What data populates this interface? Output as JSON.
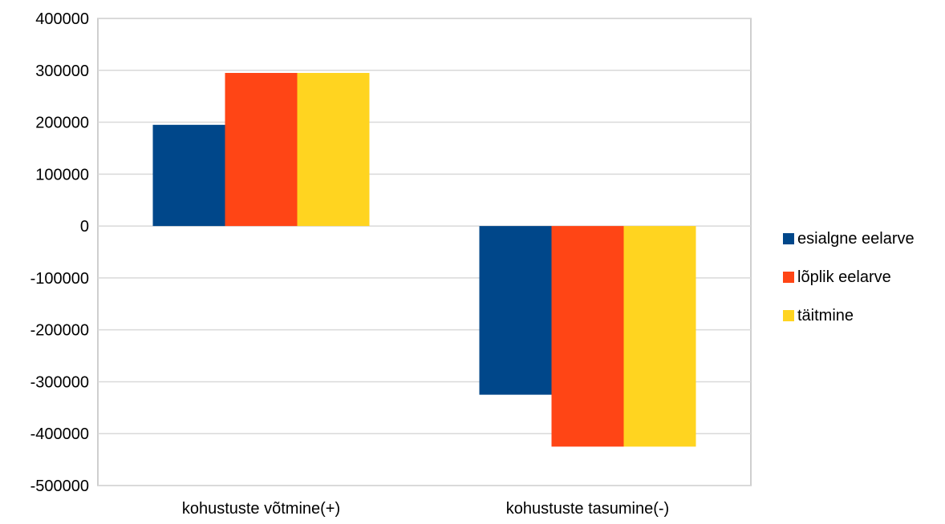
{
  "chart_data": {
    "type": "bar",
    "categories": [
      "kohustuste võtmine(+)",
      "kohustuste tasumine(-)"
    ],
    "series": [
      {
        "name": "esialgne eelarve",
        "color": "#00478A",
        "values": [
          195000,
          -325000
        ]
      },
      {
        "name": "lõplik eelarve",
        "color": "#FF4515",
        "values": [
          295000,
          -425000
        ]
      },
      {
        "name": "täitmine",
        "color": "#FFD420",
        "values": [
          295000,
          -425000
        ]
      }
    ],
    "yticks": [
      "400000",
      "300000",
      "200000",
      "100000",
      "0",
      "-100000",
      "-200000",
      "-300000",
      "-400000",
      "-500000"
    ],
    "ylim": [
      -500000,
      400000
    ],
    "grid": true,
    "legend_position": "right"
  },
  "colors": {
    "grid": "#D9D9D9",
    "axis": "#BFBFBF"
  }
}
